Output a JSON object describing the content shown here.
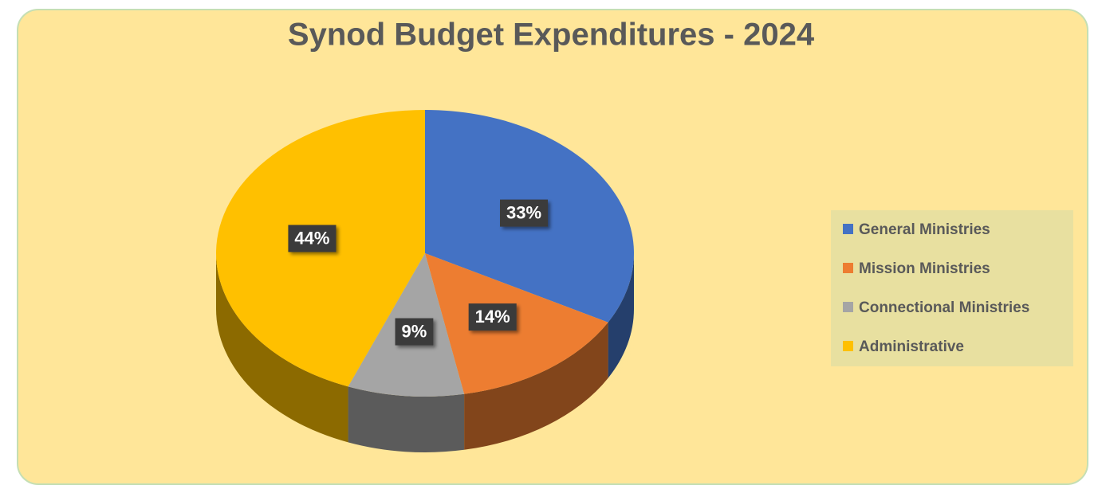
{
  "chart_data": {
    "type": "pie3d",
    "title": "Synod Budget Expenditures - 2024",
    "categories": [
      "General Ministries",
      "Mission Ministries",
      "Connectional Ministries",
      "Administrative"
    ],
    "values": [
      33,
      14,
      9,
      44
    ],
    "value_labels": [
      "33%",
      "14%",
      "9%",
      "44%"
    ],
    "colors": [
      "#4472c4",
      "#ed7d31",
      "#a5a5a5",
      "#ffc000"
    ],
    "legend": "right"
  }
}
